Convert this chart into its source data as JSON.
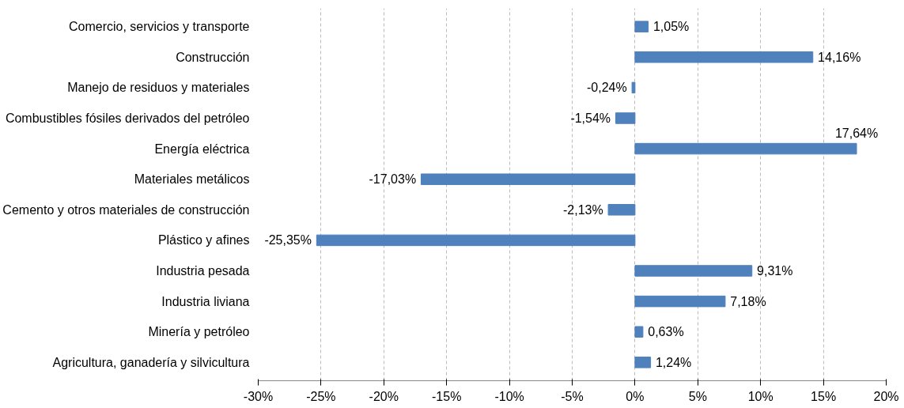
{
  "chart_data": {
    "type": "bar",
    "orientation": "horizontal",
    "categories": [
      "Comercio, servicios y transporte",
      "Construcción",
      "Manejo de residuos y materiales",
      "Combustibles fósiles derivados del petróleo",
      "Energía eléctrica",
      "Materiales metálicos",
      "Cemento y otros materiales de construcción",
      "Plástico y afines",
      "Industria pesada",
      "Industria liviana",
      "Minería y petróleo",
      "Agricultura, ganadería y silvicultura"
    ],
    "values": [
      1.05,
      14.16,
      -0.24,
      -1.54,
      17.64,
      -17.03,
      -2.13,
      -25.35,
      9.31,
      7.18,
      0.63,
      1.24
    ],
    "value_labels": [
      "1,05%",
      "14,16%",
      "-0,24%",
      "-1,54%",
      "17,64%",
      "-17,03%",
      "-2,13%",
      "-25,35%",
      "9,31%",
      "7,18%",
      "0,63%",
      "1,24%"
    ],
    "color": "#4f81bd",
    "xlim": [
      -30,
      20
    ],
    "xticks": [
      {
        "value": -30,
        "label": "-30%"
      },
      {
        "value": -25,
        "label": "-25%"
      },
      {
        "value": -20,
        "label": "-20%"
      },
      {
        "value": -15,
        "label": "-15%"
      },
      {
        "value": -10,
        "label": "-10%"
      },
      {
        "value": -5,
        "label": "-5%"
      },
      {
        "value": 0,
        "label": "0%"
      },
      {
        "value": 5,
        "label": "5%"
      },
      {
        "value": 10,
        "label": "10%"
      },
      {
        "value": 15,
        "label": "15%"
      },
      {
        "value": 20,
        "label": "20%"
      }
    ],
    "grid": "x"
  }
}
